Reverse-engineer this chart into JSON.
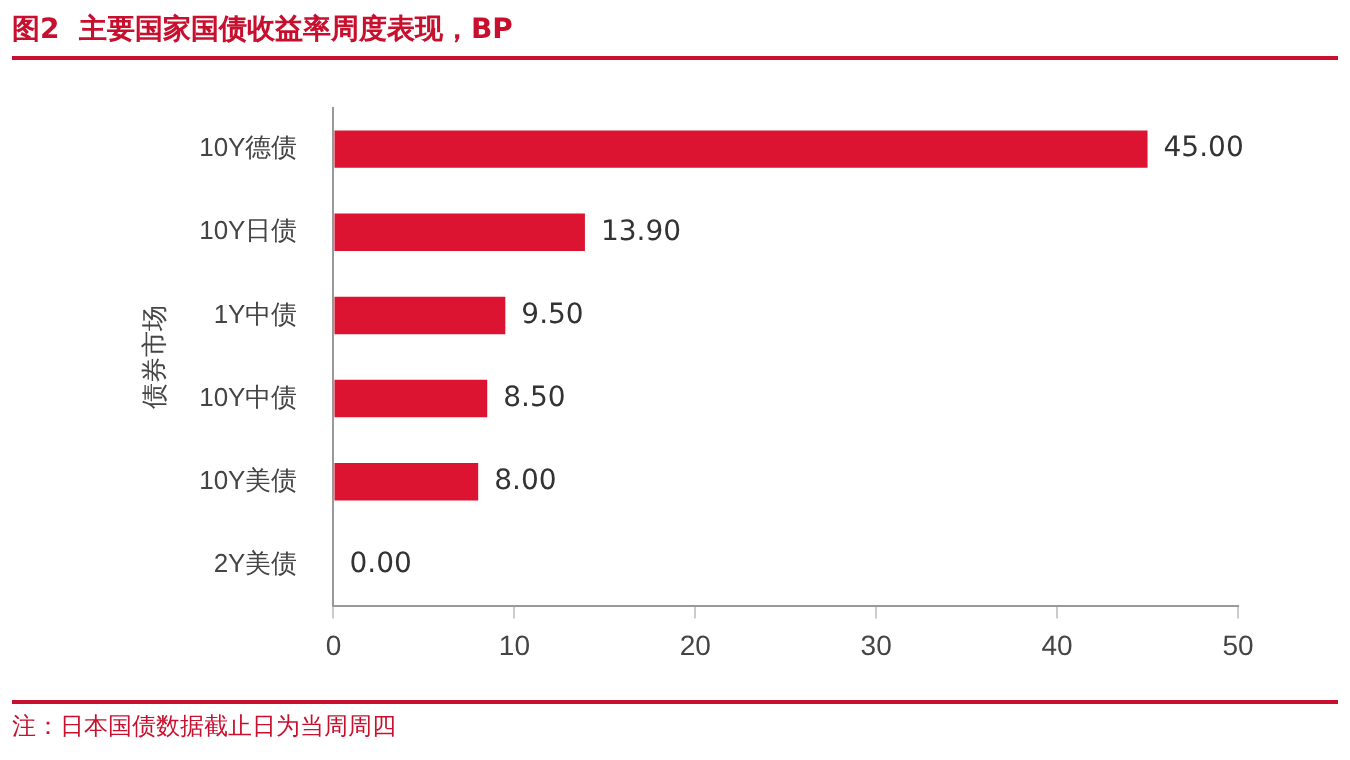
{
  "chart_data": {
    "type": "bar",
    "orientation": "horizontal",
    "title": "图2  主要国家国债收益率周度表现，BP",
    "ylabel": "债券市场",
    "categories": [
      "10Y德债",
      "10Y日债",
      "1Y中债",
      "10Y中债",
      "10Y美债",
      "2Y美债"
    ],
    "values": [
      45,
      13.9,
      9.5,
      8.5,
      8,
      0
    ],
    "value_labels": [
      "45.00",
      "13.90",
      "9.50",
      "8.50",
      "8.00",
      "0.00"
    ],
    "color": "#dc1431",
    "xlim": [
      0,
      50
    ],
    "xticks": [
      0,
      10,
      20,
      30,
      40,
      50
    ],
    "grid": false,
    "legend": false,
    "annotations": [
      "注：日本国债数据截止日为当周周四"
    ]
  }
}
